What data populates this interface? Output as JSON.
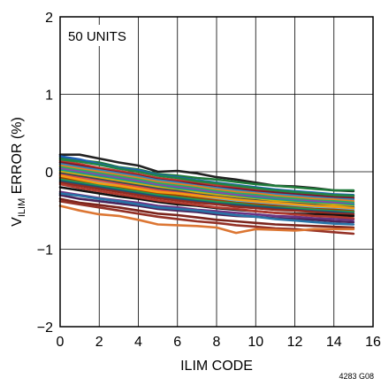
{
  "chart_data": {
    "type": "line",
    "title": "",
    "annotation": "50 UNITS",
    "figure_id": "4283 G08",
    "xlabel": "ILIM CODE",
    "ylabel_main": "V",
    "ylabel_sub": "ILIM",
    "ylabel_rest": " ERROR (%)",
    "xlim": [
      0,
      16
    ],
    "ylim": [
      -2,
      2
    ],
    "x_ticks": [
      "0",
      "2",
      "4",
      "6",
      "8",
      "10",
      "12",
      "14",
      "16"
    ],
    "y_ticks": [
      "2",
      "1",
      "0",
      "−1",
      "−2"
    ],
    "grid": true,
    "x": [
      0,
      1,
      2,
      3,
      4,
      5,
      6,
      7,
      8,
      9,
      10,
      11,
      12,
      13,
      14,
      15
    ],
    "series": [
      {
        "color": "#222222",
        "values": [
          0.22,
          0.22,
          0.17,
          0.12,
          0.08,
          0.0,
          0.01,
          -0.02,
          -0.07,
          -0.1,
          -0.14,
          -0.18,
          -0.19,
          -0.21,
          -0.24,
          -0.25
        ]
      },
      {
        "color": "#1f7a3a",
        "values": [
          0.18,
          0.15,
          0.12,
          0.06,
          0.03,
          -0.03,
          -0.05,
          -0.08,
          -0.1,
          -0.13,
          -0.16,
          -0.18,
          -0.2,
          -0.22,
          -0.24,
          -0.24
        ]
      },
      {
        "color": "#1f5fb4",
        "values": [
          0.2,
          0.16,
          0.1,
          0.05,
          0.02,
          -0.04,
          -0.07,
          -0.11,
          -0.14,
          -0.17,
          -0.2,
          -0.23,
          -0.25,
          -0.27,
          -0.29,
          -0.3
        ]
      },
      {
        "color": "#c0392b",
        "values": [
          0.14,
          0.1,
          0.05,
          0.01,
          -0.03,
          -0.08,
          -0.11,
          -0.14,
          -0.17,
          -0.2,
          -0.23,
          -0.25,
          -0.27,
          -0.29,
          -0.31,
          -0.32
        ]
      },
      {
        "color": "#7d1428",
        "values": [
          0.12,
          0.08,
          0.03,
          -0.01,
          -0.05,
          -0.1,
          -0.13,
          -0.16,
          -0.2,
          -0.22,
          -0.25,
          -0.27,
          -0.29,
          -0.31,
          -0.33,
          -0.34
        ]
      },
      {
        "color": "#2e86c1",
        "values": [
          0.1,
          0.06,
          0.02,
          -0.02,
          -0.06,
          -0.11,
          -0.14,
          -0.18,
          -0.21,
          -0.24,
          -0.27,
          -0.29,
          -0.31,
          -0.33,
          -0.35,
          -0.36
        ]
      },
      {
        "color": "#e67e22",
        "values": [
          0.08,
          0.04,
          0.0,
          -0.04,
          -0.08,
          -0.13,
          -0.16,
          -0.19,
          -0.23,
          -0.26,
          -0.28,
          -0.31,
          -0.33,
          -0.35,
          -0.36,
          -0.38
        ]
      },
      {
        "color": "#27ae60",
        "values": [
          0.06,
          0.02,
          -0.02,
          -0.06,
          -0.1,
          -0.15,
          -0.18,
          -0.21,
          -0.25,
          -0.28,
          -0.3,
          -0.33,
          -0.35,
          -0.37,
          -0.38,
          -0.4
        ]
      },
      {
        "color": "#8e44ad",
        "values": [
          0.04,
          0.0,
          -0.04,
          -0.08,
          -0.12,
          -0.17,
          -0.2,
          -0.23,
          -0.27,
          -0.3,
          -0.32,
          -0.35,
          -0.37,
          -0.38,
          -0.4,
          -0.42
        ]
      },
      {
        "color": "#16a085",
        "values": [
          0.02,
          -0.02,
          -0.06,
          -0.1,
          -0.14,
          -0.19,
          -0.22,
          -0.25,
          -0.29,
          -0.32,
          -0.34,
          -0.36,
          -0.38,
          -0.4,
          -0.42,
          -0.43
        ]
      },
      {
        "color": "#d4ac0d",
        "values": [
          0.0,
          -0.04,
          -0.08,
          -0.12,
          -0.16,
          -0.2,
          -0.24,
          -0.27,
          -0.3,
          -0.33,
          -0.36,
          -0.38,
          -0.4,
          -0.42,
          -0.43,
          -0.45
        ]
      },
      {
        "color": "#34495e",
        "values": [
          -0.02,
          -0.06,
          -0.1,
          -0.14,
          -0.18,
          -0.22,
          -0.25,
          -0.29,
          -0.32,
          -0.35,
          -0.37,
          -0.4,
          -0.41,
          -0.43,
          -0.45,
          -0.46
        ]
      },
      {
        "color": "#e74c3c",
        "values": [
          -0.04,
          -0.08,
          -0.12,
          -0.16,
          -0.2,
          -0.24,
          -0.27,
          -0.3,
          -0.34,
          -0.36,
          -0.39,
          -0.41,
          -0.43,
          -0.45,
          -0.46,
          -0.48
        ]
      },
      {
        "color": "#5dade2",
        "values": [
          -0.06,
          -0.1,
          -0.14,
          -0.18,
          -0.22,
          -0.26,
          -0.29,
          -0.32,
          -0.35,
          -0.38,
          -0.4,
          -0.43,
          -0.44,
          -0.46,
          -0.48,
          -0.49
        ]
      },
      {
        "color": "#a04000",
        "values": [
          -0.08,
          -0.12,
          -0.16,
          -0.2,
          -0.24,
          -0.28,
          -0.31,
          -0.34,
          -0.37,
          -0.4,
          -0.42,
          -0.44,
          -0.46,
          -0.48,
          -0.49,
          -0.51
        ]
      },
      {
        "color": "#229954",
        "values": [
          -0.1,
          -0.14,
          -0.18,
          -0.22,
          -0.26,
          -0.3,
          -0.33,
          -0.36,
          -0.39,
          -0.41,
          -0.44,
          -0.46,
          -0.47,
          -0.49,
          -0.51,
          -0.52
        ]
      },
      {
        "color": "#1a5276",
        "values": [
          -0.12,
          -0.16,
          -0.2,
          -0.24,
          -0.28,
          -0.32,
          -0.35,
          -0.38,
          -0.41,
          -0.43,
          -0.45,
          -0.47,
          -0.49,
          -0.51,
          -0.52,
          -0.54
        ]
      },
      {
        "color": "#922b21",
        "values": [
          -0.14,
          -0.18,
          -0.22,
          -0.26,
          -0.3,
          -0.34,
          -0.37,
          -0.4,
          -0.42,
          -0.45,
          -0.47,
          -0.49,
          -0.5,
          -0.52,
          -0.54,
          -0.55
        ]
      },
      {
        "color": "#f39c12",
        "values": [
          -0.05,
          -0.1,
          -0.15,
          -0.18,
          -0.22,
          -0.26,
          -0.28,
          -0.31,
          -0.33,
          -0.36,
          -0.38,
          -0.4,
          -0.42,
          -0.44,
          -0.45,
          -0.47
        ]
      },
      {
        "color": "#111111",
        "values": [
          -0.2,
          -0.24,
          -0.28,
          -0.32,
          -0.35,
          -0.39,
          -0.42,
          -0.44,
          -0.47,
          -0.49,
          -0.51,
          -0.53,
          -0.54,
          -0.55,
          -0.56,
          -0.57
        ]
      },
      {
        "color": "#6c3483",
        "values": [
          -0.26,
          -0.3,
          -0.34,
          -0.37,
          -0.4,
          -0.44,
          -0.46,
          -0.49,
          -0.51,
          -0.53,
          -0.55,
          -0.57,
          -0.58,
          -0.6,
          -0.61,
          -0.62
        ]
      },
      {
        "color": "#4a235a",
        "values": [
          -0.3,
          -0.35,
          -0.38,
          -0.41,
          -0.44,
          -0.48,
          -0.5,
          -0.52,
          -0.55,
          -0.57,
          -0.58,
          -0.6,
          -0.61,
          -0.62,
          -0.64,
          -0.65
        ]
      },
      {
        "color": "#7b241c",
        "values": [
          -0.35,
          -0.4,
          -0.43,
          -0.46,
          -0.5,
          -0.54,
          -0.56,
          -0.59,
          -0.62,
          -0.64,
          -0.66,
          -0.68,
          -0.69,
          -0.7,
          -0.71,
          -0.72
        ]
      },
      {
        "color": "#943126",
        "values": [
          -0.38,
          -0.42,
          -0.46,
          -0.5,
          -0.54,
          -0.58,
          -0.61,
          -0.64,
          -0.66,
          -0.69,
          -0.71,
          -0.73,
          -0.74,
          -0.76,
          -0.78,
          -0.8
        ]
      },
      {
        "color": "#dc7633",
        "values": [
          -0.44,
          -0.5,
          -0.55,
          -0.57,
          -0.62,
          -0.68,
          -0.69,
          -0.7,
          -0.72,
          -0.79,
          -0.74,
          -0.75,
          -0.76,
          -0.74,
          -0.74,
          -0.74
        ]
      },
      {
        "color": "#2874a6",
        "values": [
          -0.28,
          -0.31,
          -0.35,
          -0.38,
          -0.42,
          -0.46,
          -0.48,
          -0.5,
          -0.53,
          -0.56,
          -0.58,
          -0.61,
          -0.63,
          -0.65,
          -0.67,
          -0.68
        ]
      },
      {
        "color": "#1e8449",
        "values": [
          0.16,
          0.13,
          0.09,
          0.04,
          0.0,
          -0.05,
          -0.08,
          -0.12,
          -0.15,
          -0.18,
          -0.21,
          -0.24,
          -0.26,
          -0.28,
          -0.3,
          -0.31
        ]
      },
      {
        "color": "#b03a2e",
        "values": [
          -0.16,
          -0.21,
          -0.25,
          -0.29,
          -0.33,
          -0.37,
          -0.4,
          -0.43,
          -0.46,
          -0.48,
          -0.51,
          -0.53,
          -0.55,
          -0.57,
          -0.58,
          -0.6
        ]
      }
    ]
  }
}
